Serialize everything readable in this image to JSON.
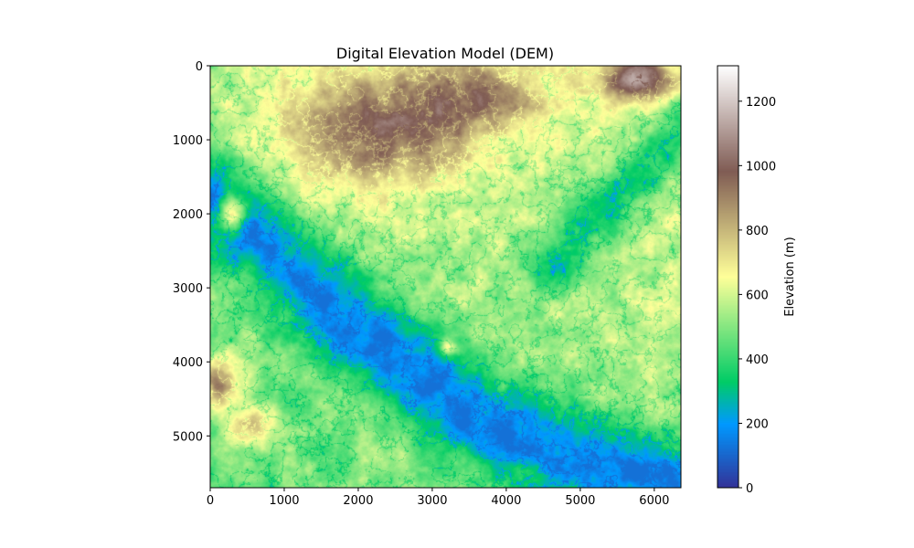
{
  "chart_data": {
    "type": "heatmap",
    "title": "Digital Elevation Model (DEM)",
    "xlabel": "",
    "ylabel": "",
    "xlim": [
      0,
      6360
    ],
    "ylim": [
      5700,
      0
    ],
    "x_ticks": [
      0,
      1000,
      2000,
      3000,
      4000,
      5000,
      6000
    ],
    "y_ticks": [
      0,
      1000,
      2000,
      3000,
      4000,
      5000
    ],
    "grid": false,
    "colorbar": {
      "label": "Elevation (m)",
      "range": [
        0,
        1310
      ],
      "ticks": [
        0,
        200,
        400,
        600,
        800,
        1000,
        1200
      ],
      "colormap": "terrain",
      "stops": [
        {
          "v": 0.0,
          "c": "#333399"
        },
        {
          "v": 0.15,
          "c": "#0099ff"
        },
        {
          "v": 0.25,
          "c": "#00cc66"
        },
        {
          "v": 0.5,
          "c": "#ffff99"
        },
        {
          "v": 0.75,
          "c": "#805c54"
        },
        {
          "v": 1.0,
          "c": "#ffffff"
        }
      ]
    },
    "features": {
      "river_valley": [
        [
          0,
          1800
        ],
        [
          800,
          2400
        ],
        [
          1500,
          3200
        ],
        [
          2200,
          3700
        ],
        [
          2800,
          4100
        ],
        [
          3500,
          4700
        ],
        [
          4200,
          5000
        ],
        [
          5000,
          5300
        ],
        [
          5700,
          5500
        ],
        [
          6360,
          5700
        ]
      ],
      "ne_valley": [
        [
          6360,
          800
        ],
        [
          5800,
          1500
        ],
        [
          5200,
          2100
        ],
        [
          4700,
          2700
        ]
      ],
      "highlands": [
        {
          "x": 2200,
          "y": 900,
          "rx": 1400,
          "ry": 900,
          "elev": 1000
        },
        {
          "x": 3600,
          "y": 400,
          "rx": 1100,
          "ry": 600,
          "elev": 900
        },
        {
          "x": 5800,
          "y": 200,
          "rx": 500,
          "ry": 300,
          "elev": 1150
        },
        {
          "x": 300,
          "y": 2000,
          "rx": 250,
          "ry": 300,
          "elev": 1100
        },
        {
          "x": 150,
          "y": 4300,
          "rx": 300,
          "ry": 400,
          "elev": 1000
        },
        {
          "x": 600,
          "y": 4900,
          "rx": 400,
          "ry": 300,
          "elev": 900
        },
        {
          "x": 3200,
          "y": 3800,
          "rx": 150,
          "ry": 150,
          "elev": 900
        }
      ]
    }
  }
}
